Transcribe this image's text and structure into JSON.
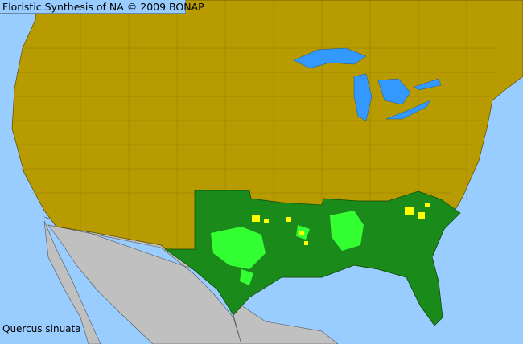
{
  "title": "Floristic Synthesis of NA © 2009 BONAP",
  "species": "Quercus sinuata",
  "colors": {
    "ocean": "#99ccff",
    "land_absent": "#b89b00",
    "mexico": "#c0c0c0",
    "state_present": "#1a8a1a",
    "county_native": "#33ff33",
    "county_rare": "#ffff00",
    "lakes": "#3399ff"
  }
}
